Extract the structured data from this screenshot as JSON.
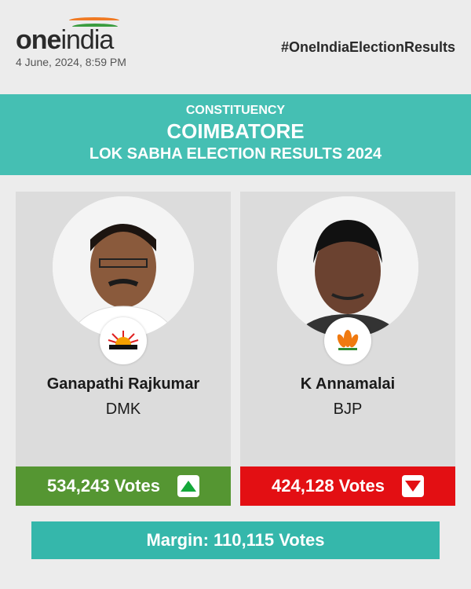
{
  "header": {
    "logo_text_bold": "one",
    "logo_text": "india",
    "datetime": "4 June, 2024, 8:59 PM",
    "hashtag": "#OneIndiaElectionResults"
  },
  "banner": {
    "label": "CONSTITUENCY",
    "constituency": "COIMBATORE",
    "title": "LOK SABHA ELECTION RESULTS 2024",
    "color": "#45bfb3"
  },
  "candidates": [
    {
      "name": "Ganapathi Rajkumar",
      "party": "DMK",
      "votes": "534,243 Votes",
      "trend": "up",
      "color": "#559632",
      "symbol": "rising-sun-icon"
    },
    {
      "name": "K Annamalai",
      "party": "BJP",
      "votes": "424,128 Votes",
      "trend": "down",
      "color": "#e30f13",
      "symbol": "lotus-icon"
    }
  ],
  "margin": {
    "text": "Margin: 110,115 Votes",
    "color": "#35b7ab"
  }
}
